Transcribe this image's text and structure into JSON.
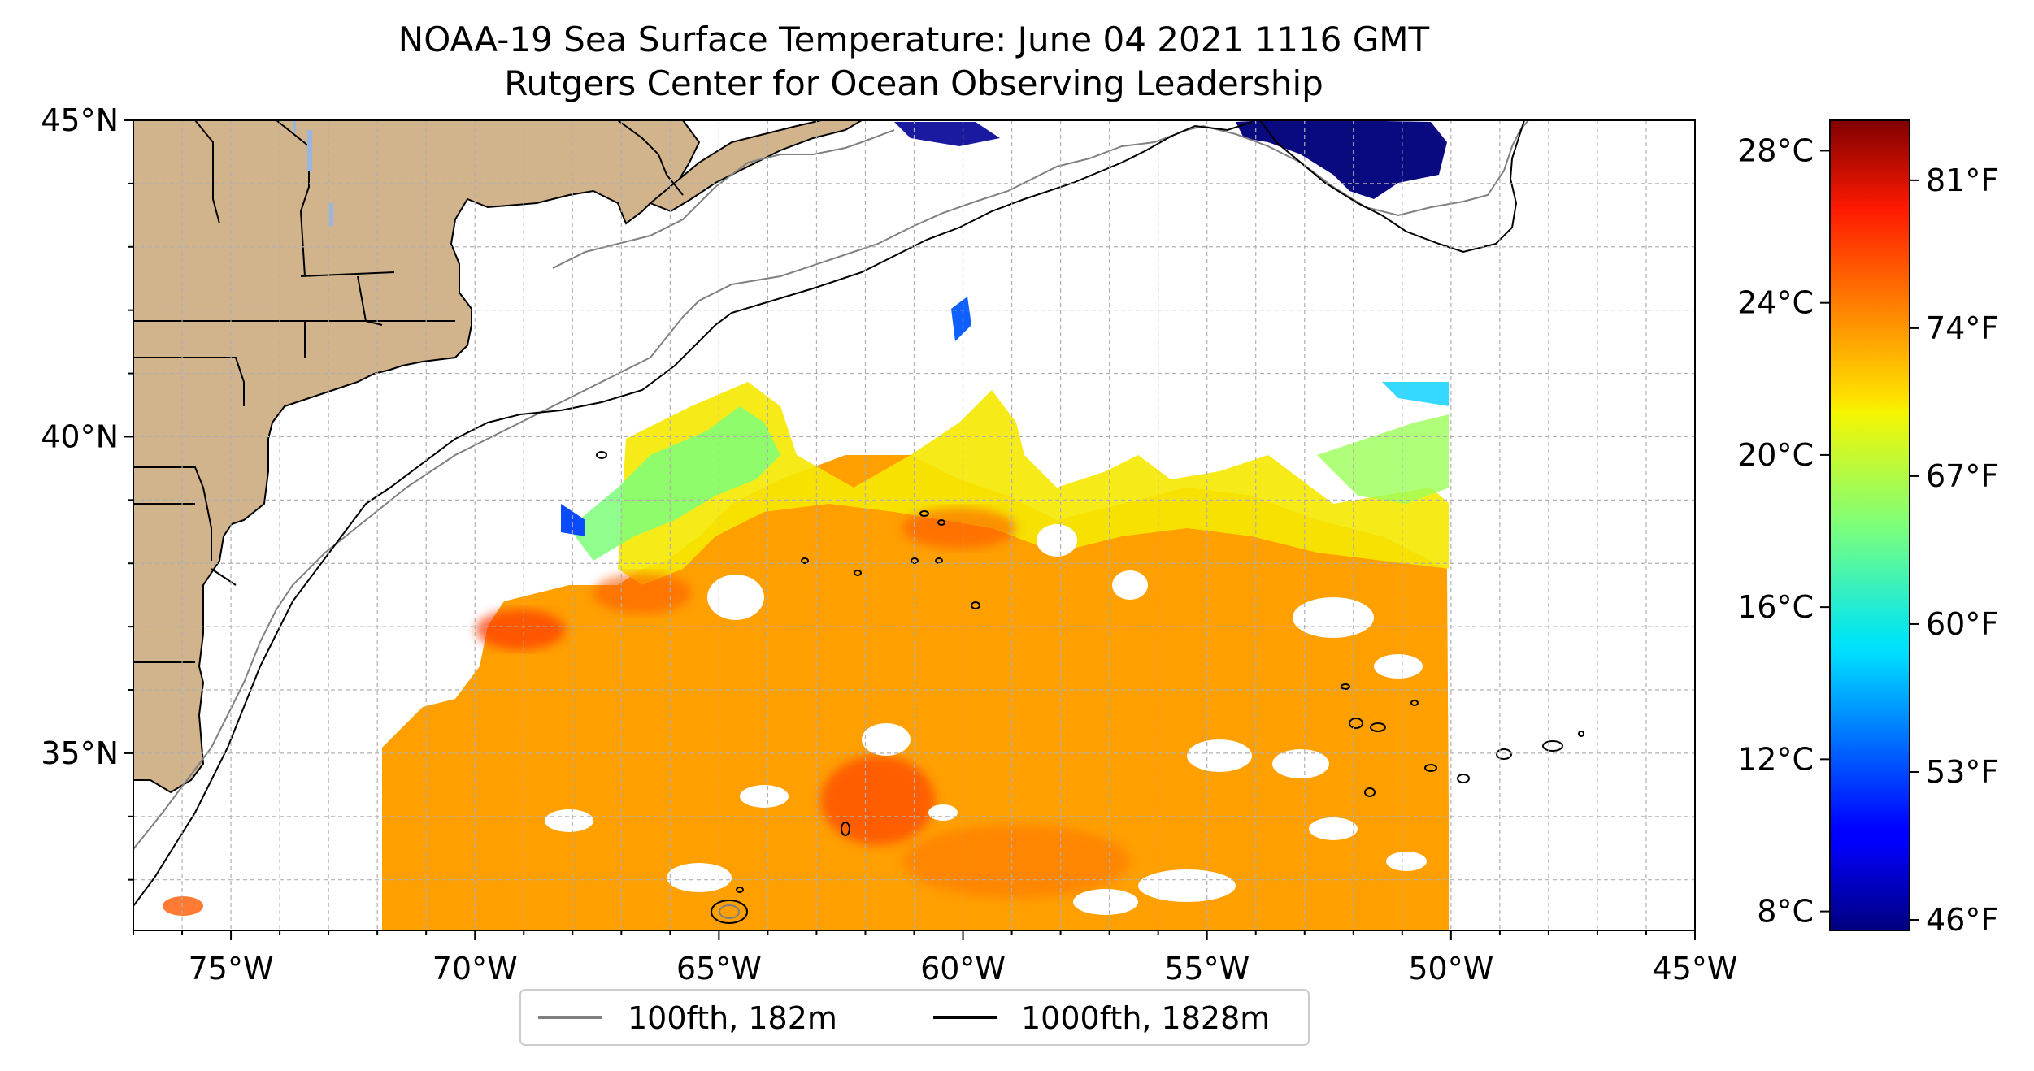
{
  "title": {
    "line1": "NOAA-19 Sea Surface Temperature: June 04 2021 1116 GMT",
    "line2": "Rutgers Center for Ocean Observing Leadership"
  },
  "map": {
    "lon_range": [
      -77,
      -45
    ],
    "lat_range": [
      32.2,
      45
    ],
    "lon_ticks": [
      {
        "value": -75,
        "label": "75°W"
      },
      {
        "value": -70,
        "label": "70°W"
      },
      {
        "value": -65,
        "label": "65°W"
      },
      {
        "value": -60,
        "label": "60°W"
      },
      {
        "value": -55,
        "label": "55°W"
      },
      {
        "value": -50,
        "label": "50°W"
      },
      {
        "value": -45,
        "label": "45°W"
      }
    ],
    "lat_ticks": [
      {
        "value": 45,
        "label": "45°N"
      },
      {
        "value": 40,
        "label": "40°N"
      },
      {
        "value": 35,
        "label": "35°N"
      }
    ],
    "grid": true,
    "land_color": "#d2b48c",
    "isobath_100fth_color": "#808080",
    "isobath_1000fth_color": "#000000"
  },
  "legend": {
    "placement": "bottom-center",
    "items": [
      {
        "label": "100fth, 182m",
        "color": "#808080"
      },
      {
        "label": "1000fth, 1828m",
        "color": "#000000"
      }
    ]
  },
  "colorbar": {
    "colormap": "jet",
    "celsius_ticks": [
      {
        "value": 28,
        "label": "28°C"
      },
      {
        "value": 24,
        "label": "24°C"
      },
      {
        "value": 20,
        "label": "20°C"
      },
      {
        "value": 16,
        "label": "16°C"
      },
      {
        "value": 12,
        "label": "12°C"
      },
      {
        "value": 8,
        "label": "8°C"
      }
    ],
    "fahrenheit_ticks": [
      {
        "value": 81,
        "label": "81°F"
      },
      {
        "value": 74,
        "label": "74°F"
      },
      {
        "value": 67,
        "label": "67°F"
      },
      {
        "value": 60,
        "label": "60°F"
      },
      {
        "value": 53,
        "label": "53°F"
      },
      {
        "value": 46,
        "label": "46°F"
      }
    ]
  }
}
